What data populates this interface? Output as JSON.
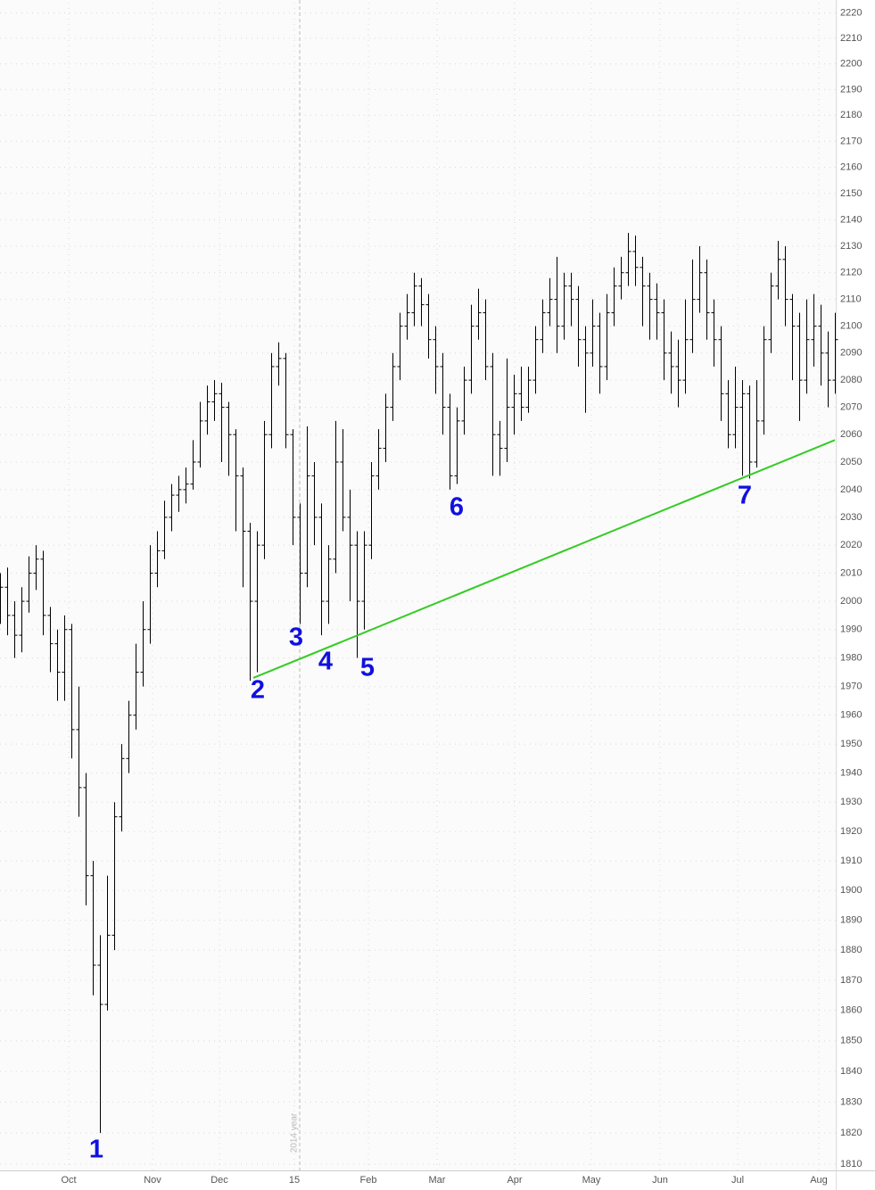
{
  "chart_data": {
    "type": "ohlc",
    "log": true,
    "grid": true,
    "color": "#000000",
    "x": [
      0,
      2,
      4,
      6,
      8,
      10,
      12,
      14,
      16,
      18,
      20,
      22,
      24,
      26,
      28,
      30,
      32,
      34,
      36,
      38,
      40,
      42,
      44,
      46,
      48,
      50,
      52,
      54,
      56,
      58,
      60,
      62,
      64,
      66,
      68,
      70,
      72,
      74,
      76,
      78,
      80,
      82,
      84,
      86,
      88,
      90,
      92,
      94,
      96,
      98,
      100,
      102,
      104,
      106,
      108,
      110,
      112,
      114,
      116,
      118,
      120,
      122,
      124,
      126,
      128,
      130,
      132,
      134,
      136,
      138,
      140,
      142,
      144,
      146,
      148,
      150,
      152,
      154,
      156,
      158,
      160,
      162,
      164,
      166,
      168,
      170,
      172,
      174,
      176,
      178,
      180,
      182,
      184,
      186,
      188,
      190,
      192,
      194,
      196,
      198,
      200,
      202,
      204,
      206,
      208,
      210,
      212,
      214,
      216,
      218,
      220,
      222,
      224,
      226,
      228,
      230,
      232,
      234
    ],
    "open": [
      2000,
      2005,
      1995,
      1988,
      2000,
      2010,
      2015,
      1995,
      1985,
      1975,
      1990,
      1955,
      1935,
      1905,
      1875,
      1862,
      1885,
      1925,
      1945,
      1960,
      1975,
      1990,
      2010,
      2018,
      2030,
      2038,
      2040,
      2042,
      2050,
      2065,
      2072,
      2075,
      2070,
      2060,
      2045,
      2025,
      2000,
      2020,
      2060,
      2085,
      2088,
      2060,
      2030,
      2010,
      2045,
      2030,
      2000,
      2015,
      2050,
      2030,
      2020,
      2000,
      2020,
      2045,
      2055,
      2070,
      2085,
      2100,
      2105,
      2115,
      2108,
      2095,
      2085,
      2070,
      2045,
      2065,
      2080,
      2100,
      2105,
      2085,
      2060,
      2055,
      2070,
      2075,
      2070,
      2080,
      2095,
      2105,
      2110,
      2100,
      2115,
      2110,
      2095,
      2090,
      2100,
      2085,
      2105,
      2115,
      2120,
      2128,
      2122,
      2115,
      2110,
      2105,
      2090,
      2085,
      2080,
      2095,
      2110,
      2120,
      2105,
      2095,
      2075,
      2060,
      2070,
      2075,
      2050,
      2065,
      2095,
      2115,
      2125,
      2110,
      2100,
      2080,
      2095,
      2100,
      2090,
      2080
    ],
    "high": [
      2010,
      2012,
      2000,
      2005,
      2016,
      2020,
      2018,
      1998,
      1990,
      1995,
      1992,
      1970,
      1940,
      1910,
      1885,
      1905,
      1930,
      1950,
      1965,
      1985,
      2000,
      2020,
      2025,
      2036,
      2042,
      2045,
      2048,
      2058,
      2072,
      2078,
      2080,
      2079,
      2072,
      2062,
      2048,
      2028,
      2025,
      2065,
      2090,
      2094,
      2090,
      2062,
      2035,
      2063,
      2050,
      2035,
      2020,
      2065,
      2062,
      2040,
      2025,
      2025,
      2050,
      2062,
      2075,
      2090,
      2105,
      2112,
      2120,
      2118,
      2112,
      2100,
      2090,
      2075,
      2070,
      2085,
      2108,
      2114,
      2110,
      2090,
      2065,
      2088,
      2082,
      2085,
      2085,
      2100,
      2110,
      2118,
      2126,
      2120,
      2120,
      2115,
      2100,
      2110,
      2105,
      2112,
      2122,
      2126,
      2135,
      2134,
      2126,
      2120,
      2116,
      2110,
      2098,
      2095,
      2110,
      2125,
      2130,
      2125,
      2110,
      2100,
      2080,
      2085,
      2080,
      2078,
      2080,
      2100,
      2120,
      2132,
      2130,
      2112,
      2105,
      2110,
      2112,
      2108,
      2098,
      2105
    ],
    "low": [
      1992,
      1988,
      1980,
      1982,
      1996,
      2004,
      1988,
      1975,
      1965,
      1965,
      1945,
      1925,
      1895,
      1865,
      1820,
      1860,
      1880,
      1920,
      1940,
      1955,
      1970,
      1985,
      2005,
      2015,
      2025,
      2032,
      2035,
      2040,
      2048,
      2060,
      2065,
      2050,
      2045,
      2025,
      2005,
      1972,
      1975,
      2015,
      2055,
      2078,
      2055,
      2020,
      1992,
      2005,
      2020,
      1988,
      1992,
      2010,
      2025,
      2000,
      1980,
      1990,
      2015,
      2040,
      2050,
      2065,
      2080,
      2095,
      2100,
      2100,
      2088,
      2075,
      2060,
      2040,
      2042,
      2060,
      2075,
      2095,
      2080,
      2045,
      2045,
      2050,
      2060,
      2065,
      2068,
      2075,
      2090,
      2100,
      2090,
      2095,
      2100,
      2085,
      2068,
      2085,
      2075,
      2080,
      2100,
      2110,
      2115,
      2115,
      2100,
      2095,
      2095,
      2080,
      2075,
      2070,
      2075,
      2090,
      2105,
      2095,
      2085,
      2065,
      2055,
      2055,
      2045,
      2044,
      2048,
      2060,
      2090,
      2110,
      2100,
      2080,
      2065,
      2075,
      2085,
      2078,
      2070,
      2075
    ],
    "close": [
      2005,
      1995,
      1988,
      2000,
      2010,
      2015,
      1995,
      1985,
      1975,
      1990,
      1955,
      1935,
      1905,
      1875,
      1862,
      1885,
      1925,
      1945,
      1960,
      1975,
      1990,
      2010,
      2018,
      2030,
      2038,
      2040,
      2042,
      2050,
      2065,
      2072,
      2075,
      2070,
      2060,
      2045,
      2025,
      2000,
      2020,
      2060,
      2085,
      2088,
      2060,
      2030,
      2010,
      2045,
      2030,
      2000,
      2015,
      2050,
      2030,
      2020,
      2000,
      2020,
      2045,
      2055,
      2070,
      2085,
      2100,
      2105,
      2115,
      2108,
      2095,
      2085,
      2070,
      2045,
      2065,
      2080,
      2100,
      2105,
      2085,
      2060,
      2055,
      2070,
      2075,
      2070,
      2080,
      2095,
      2105,
      2110,
      2100,
      2115,
      2110,
      2095,
      2090,
      2100,
      2085,
      2105,
      2115,
      2120,
      2128,
      2122,
      2115,
      2110,
      2105,
      2090,
      2085,
      2080,
      2095,
      2110,
      2120,
      2105,
      2095,
      2075,
      2060,
      2070,
      2075,
      2050,
      2065,
      2095,
      2115,
      2125,
      2110,
      2100,
      2080,
      2095,
      2100,
      2090,
      2080,
      2095
    ],
    "xlim": [
      0,
      235
    ],
    "ylim": [
      1808,
      2224
    ],
    "xticks": [
      {
        "value": 19.25,
        "label": "Oct"
      },
      {
        "value": 42.75,
        "label": "Nov"
      },
      {
        "value": 61.5,
        "label": "Dec"
      },
      {
        "value": 82.5,
        "label": "15"
      },
      {
        "value": 103.25,
        "label": "Feb"
      },
      {
        "value": 122.5,
        "label": "Mar"
      },
      {
        "value": 144.25,
        "label": "Apr"
      },
      {
        "value": 165.75,
        "label": "May"
      },
      {
        "value": 185,
        "label": "Jun"
      },
      {
        "value": 206.75,
        "label": "Jul"
      },
      {
        "value": 229.5,
        "label": "Aug"
      }
    ],
    "yticks": [
      1810,
      1820,
      1830,
      1840,
      1850,
      1860,
      1870,
      1880,
      1890,
      1900,
      1910,
      1920,
      1930,
      1940,
      1950,
      1960,
      1970,
      1980,
      1990,
      2000,
      2010,
      2020,
      2030,
      2040,
      2050,
      2060,
      2070,
      2080,
      2090,
      2100,
      2110,
      2120,
      2130,
      2140,
      2150,
      2160,
      2170,
      2180,
      2190,
      2200,
      2210,
      2220
    ],
    "trendline": {
      "x": [
        71,
        234
      ],
      "y": [
        1973,
        2058
      ],
      "color": "#33cc22"
    },
    "year_divider": {
      "x": 84,
      "label": "2014 year"
    },
    "annotations": [
      "1",
      "2",
      "3",
      "4",
      "5",
      "6",
      "7"
    ],
    "annotation_color": "#1010e0"
  }
}
